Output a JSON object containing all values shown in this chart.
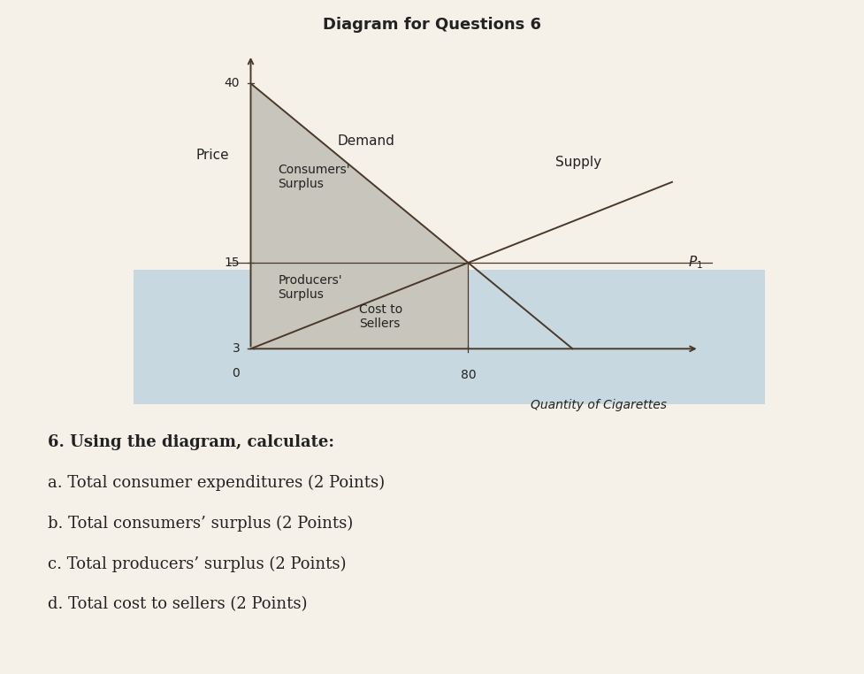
{
  "title": "Diagram for Questions 6",
  "title_fontsize": 13,
  "title_fontweight": "bold",
  "xlabel": "Quantity of Cigarettes",
  "ylabel": "Price",
  "p_equilibrium": 15,
  "p_demand_intercept": 40,
  "p_supply_intercept": 3,
  "q_equilibrium": 80,
  "demand_label": "Demand",
  "supply_label": "Supply",
  "consumers_surplus_label": "Consumers'\nSurplus",
  "producers_surplus_label": "Producers'\nSurplus",
  "cost_to_sellers_label": "Cost to\nSellers",
  "p1_label": "$P_1$",
  "shading_color": "#c8c5bc",
  "line_color": "#4a3828",
  "text_color": "#222222",
  "figure_bg": "#f5f0e8",
  "diagram_bg": "#ddd9ce",
  "bottom_bg": "#c8d8e0",
  "text_lines": [
    "6. Using the diagram, calculate:",
    "a. Total consumer expenditures (2 Points)",
    "b. Total consumers’ surplus (2 Points)",
    "c. Total producers’ surplus (2 Points)",
    "d. Total cost to sellers (2 Points)"
  ],
  "text_fontsize": 13
}
